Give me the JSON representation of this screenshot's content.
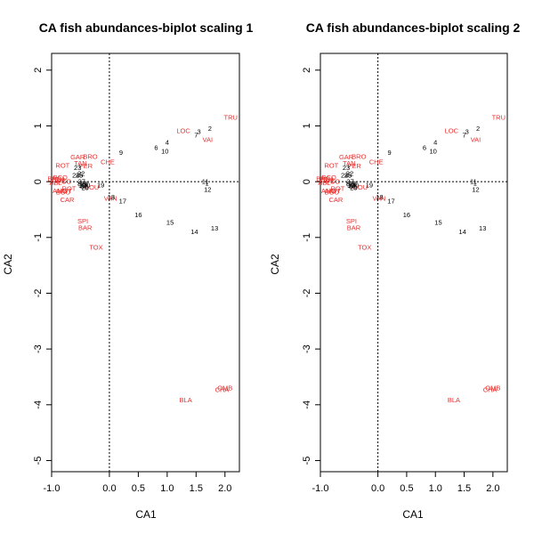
{
  "chart_data": [
    {
      "type": "scatter",
      "title": "CA fish abundances-biplot scaling 1",
      "xlabel": "CA1",
      "ylabel": "CA2",
      "xlim": [
        -1.0,
        2.25
      ],
      "ylim": [
        -5.2,
        2.3
      ],
      "xticks": [
        -1.0,
        0.0,
        0.5,
        1.0,
        1.5,
        2.0
      ],
      "xtick_labels": [
        "-1.0",
        "0.0",
        "0.5",
        "1.0",
        "1.5",
        "2.0"
      ],
      "yticks": [
        -5,
        -4,
        -3,
        -2,
        -1,
        0,
        1,
        2
      ],
      "ytick_labels": [
        "-5",
        "-4",
        "-3",
        "-2",
        "-1",
        "0",
        "1",
        "2"
      ],
      "reference_lines": {
        "x": 0,
        "y": 0,
        "style": "dotted"
      },
      "grid": false,
      "sites": [
        {
          "label": "1",
          "x": 1.69,
          "y": -0.02
        },
        {
          "label": "2",
          "x": 1.74,
          "y": 0.96
        },
        {
          "label": "3",
          "x": 1.55,
          "y": 0.9
        },
        {
          "label": "4",
          "x": 1.0,
          "y": 0.71
        },
        {
          "label": "5",
          "x": -0.49,
          "y": 0.12
        },
        {
          "label": "6",
          "x": 0.81,
          "y": 0.62
        },
        {
          "label": "7",
          "x": 1.5,
          "y": 0.84
        },
        {
          "label": "8",
          "x": -0.52,
          "y": -0.03
        },
        {
          "label": "9",
          "x": 0.2,
          "y": 0.53
        },
        {
          "label": "10",
          "x": 0.96,
          "y": 0.55
        },
        {
          "label": "11",
          "x": 1.66,
          "y": 0.01
        },
        {
          "label": "12",
          "x": 1.7,
          "y": -0.13
        },
        {
          "label": "13",
          "x": 1.82,
          "y": -0.83
        },
        {
          "label": "14",
          "x": 1.47,
          "y": -0.89
        },
        {
          "label": "15",
          "x": 1.05,
          "y": -0.72
        },
        {
          "label": "16",
          "x": 0.5,
          "y": -0.59
        },
        {
          "label": "17",
          "x": 0.23,
          "y": -0.34
        },
        {
          "label": "18",
          "x": 0.03,
          "y": -0.27
        },
        {
          "label": "19",
          "x": -0.15,
          "y": -0.05
        },
        {
          "label": "20",
          "x": -0.4,
          "y": -0.05
        },
        {
          "label": "21",
          "x": -0.44,
          "y": -0.07
        },
        {
          "label": "22",
          "x": -0.49,
          "y": 0.15
        },
        {
          "label": "23",
          "x": -0.55,
          "y": 0.26
        },
        {
          "label": "24",
          "x": -0.58,
          "y": 0.12
        },
        {
          "label": "25",
          "x": -0.52,
          "y": 0.12
        },
        {
          "label": "26",
          "x": -0.43,
          "y": -0.03
        },
        {
          "label": "27",
          "x": -0.48,
          "y": 0.01
        },
        {
          "label": "28",
          "x": -0.45,
          "y": -0.05
        },
        {
          "label": "29",
          "x": -0.42,
          "y": -0.1
        },
        {
          "label": "30",
          "x": -0.47,
          "y": -0.06
        }
      ],
      "species": [
        {
          "label": "TRU",
          "x": 2.1,
          "y": 1.16
        },
        {
          "label": "VAI",
          "x": 1.7,
          "y": 0.76
        },
        {
          "label": "LOC",
          "x": 1.28,
          "y": 0.92
        },
        {
          "label": "OMB",
          "x": 2.0,
          "y": -3.69
        },
        {
          "label": "BLA",
          "x": 1.32,
          "y": -3.91
        },
        {
          "label": "CHA",
          "x": 1.95,
          "y": -3.72
        },
        {
          "label": "TOX",
          "x": -0.23,
          "y": -1.17
        },
        {
          "label": "BAR",
          "x": -0.42,
          "y": -0.82
        },
        {
          "label": "SPI",
          "x": -0.46,
          "y": -0.7
        },
        {
          "label": "VAN",
          "x": 0.02,
          "y": -0.29
        },
        {
          "label": "CHE",
          "x": -0.03,
          "y": 0.36
        },
        {
          "label": "BRO",
          "x": -0.33,
          "y": 0.46
        },
        {
          "label": "GAR",
          "x": -0.55,
          "y": 0.45
        },
        {
          "label": "PER",
          "x": -0.41,
          "y": 0.29
        },
        {
          "label": "TAN",
          "x": -0.5,
          "y": 0.34
        },
        {
          "label": "ROT",
          "x": -0.81,
          "y": 0.3
        },
        {
          "label": "HOT",
          "x": -0.77,
          "y": -0.16
        },
        {
          "label": "CAR",
          "x": -0.73,
          "y": -0.32
        },
        {
          "label": "GOU",
          "x": -0.31,
          "y": -0.09
        },
        {
          "label": "GRE",
          "x": -0.88,
          "y": 0.03
        },
        {
          "label": "ABL",
          "x": -0.93,
          "y": -0.01
        },
        {
          "label": "ANG",
          "x": -0.86,
          "y": -0.16
        },
        {
          "label": "BOU",
          "x": -0.8,
          "y": -0.18
        },
        {
          "label": "PCH",
          "x": -0.9,
          "y": 0.05
        },
        {
          "label": "BCO",
          "x": -0.85,
          "y": 0.08
        },
        {
          "label": "BBO",
          "x": -0.95,
          "y": 0.06
        },
        {
          "label": "PSO",
          "x": -0.78,
          "y": 0.01
        },
        {
          "label": "ROT",
          "x": -0.7,
          "y": -0.12
        }
      ],
      "colors": {
        "sites": "#000000",
        "species": "#E8312F"
      }
    },
    {
      "type": "scatter",
      "title": "CA fish abundances-biplot scaling 2",
      "xlabel": "CA1",
      "ylabel": "CA2",
      "xlim": [
        -1.0,
        2.25
      ],
      "ylim": [
        -5.2,
        2.3
      ],
      "xticks": [
        -1.0,
        0.0,
        0.5,
        1.0,
        1.5,
        2.0
      ],
      "xtick_labels": [
        "-1.0",
        "0.0",
        "0.5",
        "1.0",
        "1.5",
        "2.0"
      ],
      "yticks": [
        -5,
        -4,
        -3,
        -2,
        -1,
        0,
        1,
        2
      ],
      "ytick_labels": [
        "-5",
        "-4",
        "-3",
        "-2",
        "-1",
        "0",
        "1",
        "2"
      ],
      "reference_lines": {
        "x": 0,
        "y": 0,
        "style": "dotted"
      },
      "grid": false,
      "sites": [
        {
          "label": "1",
          "x": 1.69,
          "y": -0.02
        },
        {
          "label": "2",
          "x": 1.74,
          "y": 0.96
        },
        {
          "label": "3",
          "x": 1.55,
          "y": 0.9
        },
        {
          "label": "4",
          "x": 1.0,
          "y": 0.71
        },
        {
          "label": "5",
          "x": -0.49,
          "y": 0.12
        },
        {
          "label": "6",
          "x": 0.81,
          "y": 0.62
        },
        {
          "label": "7",
          "x": 1.5,
          "y": 0.84
        },
        {
          "label": "8",
          "x": -0.52,
          "y": -0.03
        },
        {
          "label": "9",
          "x": 0.2,
          "y": 0.53
        },
        {
          "label": "10",
          "x": 0.96,
          "y": 0.55
        },
        {
          "label": "11",
          "x": 1.66,
          "y": 0.01
        },
        {
          "label": "12",
          "x": 1.7,
          "y": -0.13
        },
        {
          "label": "13",
          "x": 1.82,
          "y": -0.83
        },
        {
          "label": "14",
          "x": 1.47,
          "y": -0.89
        },
        {
          "label": "15",
          "x": 1.05,
          "y": -0.72
        },
        {
          "label": "16",
          "x": 0.5,
          "y": -0.59
        },
        {
          "label": "17",
          "x": 0.23,
          "y": -0.34
        },
        {
          "label": "18",
          "x": 0.03,
          "y": -0.27
        },
        {
          "label": "19",
          "x": -0.15,
          "y": -0.05
        },
        {
          "label": "20",
          "x": -0.4,
          "y": -0.05
        },
        {
          "label": "21",
          "x": -0.44,
          "y": -0.07
        },
        {
          "label": "22",
          "x": -0.49,
          "y": 0.15
        },
        {
          "label": "23",
          "x": -0.55,
          "y": 0.26
        },
        {
          "label": "24",
          "x": -0.58,
          "y": 0.12
        },
        {
          "label": "25",
          "x": -0.52,
          "y": 0.12
        },
        {
          "label": "26",
          "x": -0.43,
          "y": -0.03
        },
        {
          "label": "27",
          "x": -0.48,
          "y": 0.01
        },
        {
          "label": "28",
          "x": -0.45,
          "y": -0.05
        },
        {
          "label": "29",
          "x": -0.42,
          "y": -0.1
        },
        {
          "label": "30",
          "x": -0.47,
          "y": -0.06
        }
      ],
      "species": [
        {
          "label": "TRU",
          "x": 2.1,
          "y": 1.16
        },
        {
          "label": "VAI",
          "x": 1.7,
          "y": 0.76
        },
        {
          "label": "LOC",
          "x": 1.28,
          "y": 0.92
        },
        {
          "label": "OMB",
          "x": 2.0,
          "y": -3.69
        },
        {
          "label": "BLA",
          "x": 1.32,
          "y": -3.91
        },
        {
          "label": "CHA",
          "x": 1.95,
          "y": -3.72
        },
        {
          "label": "TOX",
          "x": -0.23,
          "y": -1.17
        },
        {
          "label": "BAR",
          "x": -0.42,
          "y": -0.82
        },
        {
          "label": "SPI",
          "x": -0.46,
          "y": -0.7
        },
        {
          "label": "VAN",
          "x": 0.02,
          "y": -0.29
        },
        {
          "label": "CHE",
          "x": -0.03,
          "y": 0.36
        },
        {
          "label": "BRO",
          "x": -0.33,
          "y": 0.46
        },
        {
          "label": "GAR",
          "x": -0.55,
          "y": 0.45
        },
        {
          "label": "PER",
          "x": -0.41,
          "y": 0.29
        },
        {
          "label": "TAN",
          "x": -0.5,
          "y": 0.34
        },
        {
          "label": "ROT",
          "x": -0.81,
          "y": 0.3
        },
        {
          "label": "HOT",
          "x": -0.77,
          "y": -0.16
        },
        {
          "label": "CAR",
          "x": -0.73,
          "y": -0.32
        },
        {
          "label": "GOU",
          "x": -0.31,
          "y": -0.09
        },
        {
          "label": "GRE",
          "x": -0.88,
          "y": 0.03
        },
        {
          "label": "ABL",
          "x": -0.93,
          "y": -0.01
        },
        {
          "label": "ANG",
          "x": -0.86,
          "y": -0.16
        },
        {
          "label": "BOU",
          "x": -0.8,
          "y": -0.18
        },
        {
          "label": "PCH",
          "x": -0.9,
          "y": 0.05
        },
        {
          "label": "BCO",
          "x": -0.85,
          "y": 0.08
        },
        {
          "label": "BBO",
          "x": -0.95,
          "y": 0.06
        },
        {
          "label": "PSO",
          "x": -0.78,
          "y": 0.01
        },
        {
          "label": "ROT",
          "x": -0.7,
          "y": -0.12
        }
      ],
      "colors": {
        "sites": "#000000",
        "species": "#E8312F"
      }
    }
  ]
}
